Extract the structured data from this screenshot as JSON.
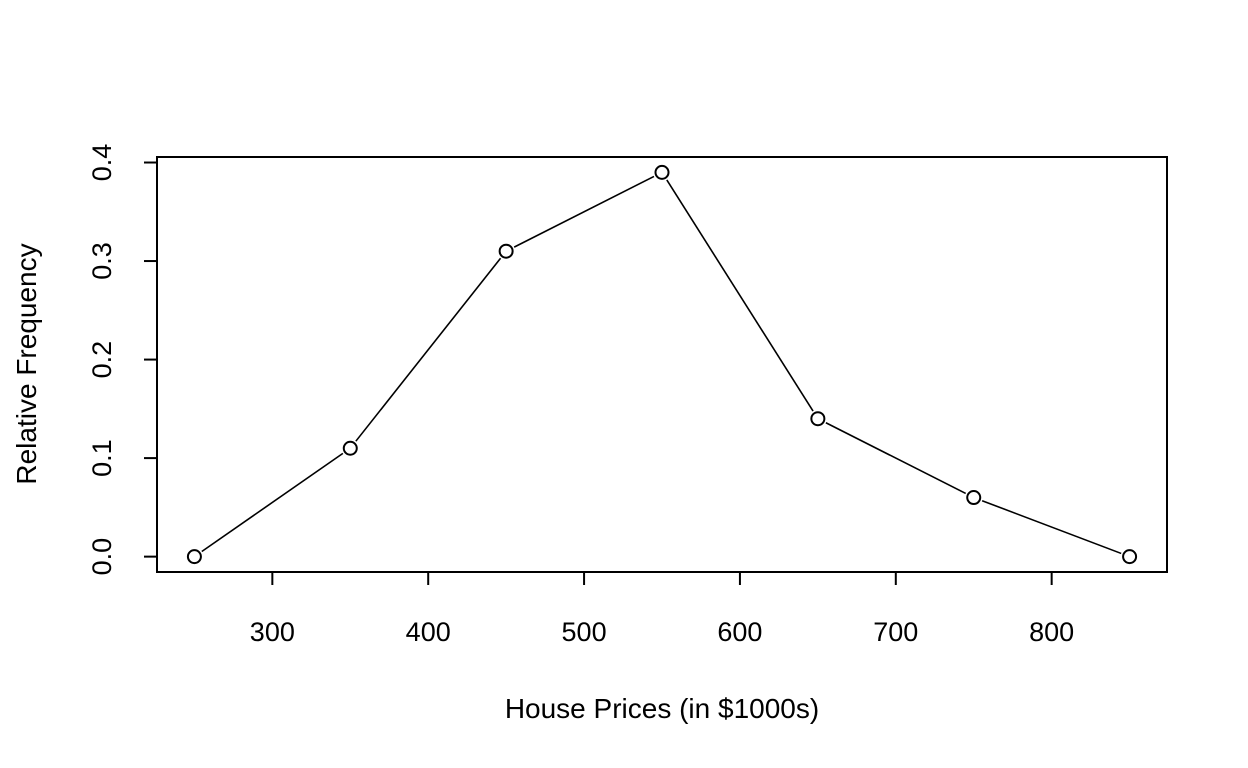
{
  "chart_data": {
    "type": "line",
    "title": "",
    "xlabel": "House Prices (in $1000s)",
    "ylabel": "Relative Frequency",
    "xlim": [
      226,
      874
    ],
    "ylim": [
      -0.0156,
      0.4056
    ],
    "xticks": [
      300,
      400,
      500,
      600,
      700,
      800
    ],
    "yticks": [
      0.0,
      0.1,
      0.2,
      0.3,
      0.4
    ],
    "xtick_labels": [
      "300",
      "400",
      "500",
      "600",
      "700",
      "800"
    ],
    "ytick_labels": [
      "0.0",
      "0.1",
      "0.2",
      "0.3",
      "0.4"
    ],
    "grid": false,
    "legend": "none",
    "marker": "open-circle",
    "colors": {
      "line": "#000000",
      "marker": "#000000",
      "background": "#ffffff"
    },
    "x": [
      250,
      350,
      450,
      550,
      650,
      750,
      850
    ],
    "y": [
      0.0,
      0.11,
      0.31,
      0.39,
      0.14,
      0.06,
      0.0
    ]
  }
}
